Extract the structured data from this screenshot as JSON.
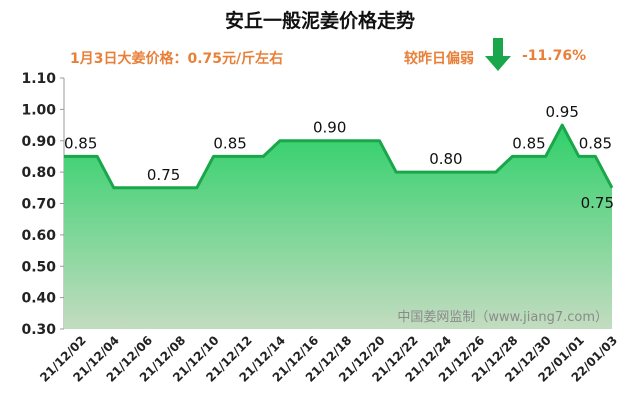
{
  "header": {
    "title": "安丘一般泥姜价格走势",
    "price_text": "1月3日大姜价格：0.75元/斤左右",
    "compare_label": "较昨日偏弱",
    "compare_value": "-11.76%",
    "trend_icon": "down-arrow-icon",
    "trend_color": "#1aa64a"
  },
  "watermark": "中国姜网监制（www.jiang7.com）",
  "chart_data": {
    "type": "area",
    "x": [
      "21/12/01",
      "21/12/02",
      "21/12/03",
      "21/12/04",
      "21/12/05",
      "21/12/06",
      "21/12/07",
      "21/12/08",
      "21/12/09",
      "21/12/10",
      "21/12/11",
      "21/12/12",
      "21/12/13",
      "21/12/14",
      "21/12/15",
      "21/12/16",
      "21/12/17",
      "21/12/18",
      "21/12/19",
      "21/12/20",
      "21/12/21",
      "21/12/22",
      "21/12/23",
      "21/12/24",
      "21/12/25",
      "21/12/26",
      "21/12/27",
      "21/12/28",
      "21/12/29",
      "21/12/30",
      "21/12/31",
      "22/01/01",
      "22/01/02",
      "22/01/03"
    ],
    "xtick_labels": [
      "21/12/02",
      "21/12/04",
      "21/12/06",
      "21/12/08",
      "21/12/10",
      "21/12/12",
      "21/12/14",
      "21/12/16",
      "21/12/18",
      "21/12/20",
      "21/12/22",
      "21/12/24",
      "21/12/26",
      "21/12/28",
      "21/12/30",
      "22/01/01",
      "22/01/03"
    ],
    "values": [
      0.85,
      0.85,
      0.85,
      0.75,
      0.75,
      0.75,
      0.75,
      0.75,
      0.75,
      0.85,
      0.85,
      0.85,
      0.85,
      0.9,
      0.9,
      0.9,
      0.9,
      0.9,
      0.9,
      0.9,
      0.8,
      0.8,
      0.8,
      0.8,
      0.8,
      0.8,
      0.8,
      0.85,
      0.85,
      0.85,
      0.95,
      0.85,
      0.85,
      0.75
    ],
    "data_labels": [
      {
        "x": "21/12/01",
        "value": 0.85,
        "text": "0.85"
      },
      {
        "x": "21/12/07",
        "value": 0.75,
        "text": "0.75"
      },
      {
        "x": "21/12/11",
        "value": 0.85,
        "text": "0.85"
      },
      {
        "x": "21/12/17",
        "value": 0.9,
        "text": "0.90"
      },
      {
        "x": "21/12/24",
        "value": 0.8,
        "text": "0.80"
      },
      {
        "x": "21/12/29",
        "value": 0.85,
        "text": "0.85"
      },
      {
        "x": "21/12/31",
        "value": 0.95,
        "text": "0.95"
      },
      {
        "x": "22/01/02",
        "value": 0.85,
        "text": "0.85"
      },
      {
        "x": "22/01/03",
        "value": 0.75,
        "text": "0.75"
      }
    ],
    "yticks": [
      "0.30",
      "0.40",
      "0.50",
      "0.60",
      "0.70",
      "0.80",
      "0.90",
      "1.00",
      "1.10"
    ],
    "ylim": [
      0.3,
      1.1
    ],
    "grid": false,
    "line_color": "#1aa64a",
    "fill_top_color": "#2fd06a",
    "fill_bottom_color": "#c3dcc0"
  }
}
